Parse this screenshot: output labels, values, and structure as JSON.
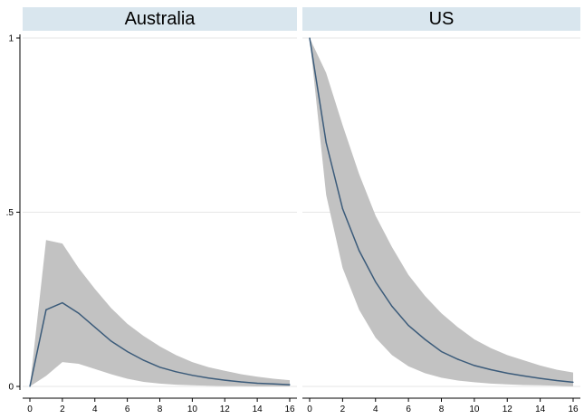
{
  "chart_data": {
    "type": "line",
    "panels": [
      {
        "title": "Australia",
        "x": [
          0,
          1,
          2,
          3,
          4,
          5,
          6,
          7,
          8,
          9,
          10,
          11,
          12,
          13,
          14,
          15,
          16
        ],
        "y": [
          0,
          0.22,
          0.24,
          0.21,
          0.17,
          0.13,
          0.1,
          0.075,
          0.055,
          0.042,
          0.032,
          0.024,
          0.018,
          0.013,
          0.009,
          0.007,
          0.005
        ],
        "lower": [
          0,
          0.03,
          0.07,
          0.065,
          0.05,
          0.035,
          0.022,
          0.013,
          0.008,
          0.005,
          0.003,
          0.002,
          0.001,
          0.001,
          0.0,
          0.0,
          0.0
        ],
        "upper": [
          0,
          0.42,
          0.41,
          0.34,
          0.28,
          0.225,
          0.18,
          0.145,
          0.115,
          0.09,
          0.07,
          0.055,
          0.045,
          0.035,
          0.028,
          0.022,
          0.018
        ]
      },
      {
        "title": "US",
        "x": [
          0,
          1,
          2,
          3,
          4,
          5,
          6,
          7,
          8,
          9,
          10,
          11,
          12,
          13,
          14,
          15,
          16
        ],
        "y": [
          1.0,
          0.7,
          0.51,
          0.39,
          0.3,
          0.23,
          0.175,
          0.135,
          0.1,
          0.078,
          0.06,
          0.048,
          0.038,
          0.03,
          0.023,
          0.017,
          0.012
        ],
        "lower": [
          1.0,
          0.55,
          0.34,
          0.22,
          0.14,
          0.09,
          0.058,
          0.038,
          0.025,
          0.017,
          0.012,
          0.008,
          0.006,
          0.004,
          0.003,
          0.002,
          0.0
        ],
        "upper": [
          1.0,
          0.9,
          0.75,
          0.61,
          0.49,
          0.4,
          0.32,
          0.26,
          0.21,
          0.17,
          0.135,
          0.11,
          0.09,
          0.075,
          0.06,
          0.048,
          0.04
        ]
      }
    ],
    "xlim": [
      0,
      16
    ],
    "ylim": [
      0,
      1
    ],
    "x_ticks": [
      "0",
      "2",
      "4",
      "6",
      "8",
      "10",
      "12",
      "14",
      "16"
    ],
    "y_ticks": [
      "0",
      ".5",
      "1"
    ],
    "grid": true,
    "colors": {
      "line": "#3b5b7a",
      "band": "#c2c2c2",
      "header": "#d9e6ee",
      "grid": "#e6e6e6"
    }
  }
}
